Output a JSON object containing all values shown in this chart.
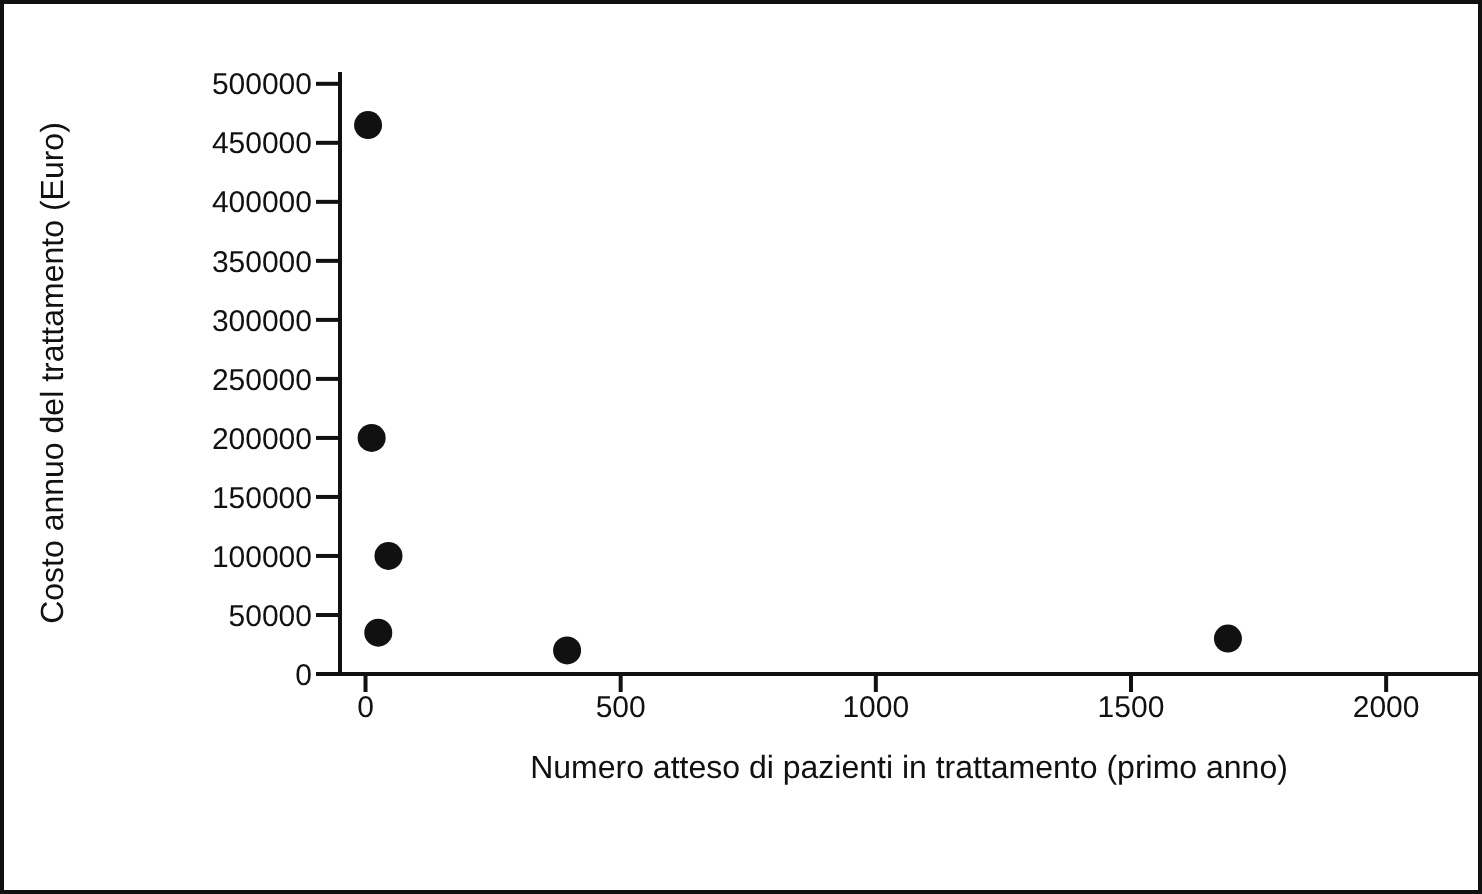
{
  "chart_data": {
    "type": "scatter",
    "xlabel": "Numero atteso di pazienti in trattamento (primo anno)",
    "ylabel": "Costo annuo del trattamento (Euro)",
    "x": [
      5,
      12,
      45,
      25,
      395,
      1690
    ],
    "values": [
      465000,
      200000,
      100000,
      35000,
      20000,
      30000
    ],
    "color": "#111111",
    "marker": "circle",
    "xlim": [
      -50,
      2180
    ],
    "xticks": [
      0,
      500,
      1000,
      1500,
      2000
    ],
    "ylim": [
      0,
      510000
    ],
    "yticks": [
      0,
      50000,
      100000,
      150000,
      200000,
      250000,
      300000,
      350000,
      400000,
      450000,
      500000
    ]
  }
}
